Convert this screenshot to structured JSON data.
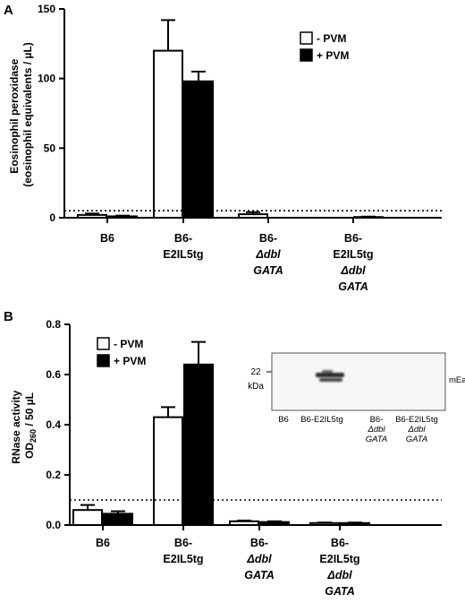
{
  "chart_data": [
    {
      "panel": "A",
      "type": "bar",
      "ylabel_lines": [
        "Eosinophil peroxidase",
        "(eosinophil equivalents / µL)"
      ],
      "ylim": [
        0,
        150
      ],
      "yticks": [
        0,
        50,
        100,
        150
      ],
      "threshold": 5,
      "legend_position": "top-right",
      "legend": [
        {
          "label": "- PVM",
          "color": "#ffffff"
        },
        {
          "label": "+ PVM",
          "color": "#000000"
        }
      ],
      "categories": [
        {
          "lines": [
            {
              "t": "B6",
              "i": false
            }
          ]
        },
        {
          "lines": [
            {
              "t": "B6-",
              "i": false
            },
            {
              "t": "E2IL5tg",
              "i": false
            }
          ]
        },
        {
          "lines": [
            {
              "t": "B6-",
              "i": false
            },
            {
              "t": "Δdbl",
              "i": true
            },
            {
              "t": "GATA",
              "i": true
            }
          ]
        },
        {
          "lines": [
            {
              "t": "B6-",
              "i": false
            },
            {
              "t": "E2IL5tg",
              "i": false
            },
            {
              "t": "Δdbl",
              "i": true
            },
            {
              "t": "GATA",
              "i": true
            }
          ]
        }
      ],
      "series": [
        {
          "name": "- PVM",
          "color": "#ffffff",
          "values": [
            2,
            120,
            2.5,
            0
          ],
          "errors": [
            1,
            22,
            1.5,
            0
          ]
        },
        {
          "name": "+ PVM",
          "color": "#000000",
          "values": [
            1,
            98,
            0,
            0.5
          ],
          "errors": [
            0.5,
            7,
            0,
            0.3
          ]
        }
      ]
    },
    {
      "panel": "B",
      "type": "bar",
      "ylabel_lines": [
        "RNase activity",
        "OD260 / 50 µL"
      ],
      "ylim": [
        0,
        0.8
      ],
      "yticks": [
        "0.0",
        "0.2",
        "0.4",
        "0.6",
        "0.8"
      ],
      "threshold": 0.1,
      "legend_position": "top-left",
      "legend": [
        {
          "label": "- PVM",
          "color": "#ffffff"
        },
        {
          "label": "+ PVM",
          "color": "#000000"
        }
      ],
      "categories": [
        {
          "lines": [
            {
              "t": "B6",
              "i": false
            }
          ]
        },
        {
          "lines": [
            {
              "t": "B6-",
              "i": false
            },
            {
              "t": "E2IL5tg",
              "i": false
            }
          ]
        },
        {
          "lines": [
            {
              "t": "B6-",
              "i": false
            },
            {
              "t": "Δdbl",
              "i": true
            },
            {
              "t": "GATA",
              "i": true
            }
          ]
        },
        {
          "lines": [
            {
              "t": "B6-",
              "i": false
            },
            {
              "t": "E2IL5tg",
              "i": false
            },
            {
              "t": "Δdbl",
              "i": true
            },
            {
              "t": "GATA",
              "i": true
            }
          ]
        }
      ],
      "series": [
        {
          "name": "- PVM",
          "color": "#ffffff",
          "values": [
            0.06,
            0.43,
            0.015,
            0.008
          ],
          "errors": [
            0.02,
            0.04,
            0.003,
            0.002
          ]
        },
        {
          "name": "+ PVM",
          "color": "#000000",
          "values": [
            0.045,
            0.64,
            0.012,
            0.008
          ],
          "errors": [
            0.01,
            0.09,
            0.003,
            0.002
          ]
        }
      ],
      "inset": {
        "marker": "22",
        "unit": "kDa",
        "band_label": "mEars",
        "lanes": [
          {
            "lines": [
              {
                "t": "B6",
                "i": false
              }
            ]
          },
          {
            "lines": [
              {
                "t": "B6-E2IL5tg",
                "i": false
              }
            ]
          },
          {
            "lines": [
              {
                "t": "B6-",
                "i": false
              },
              {
                "t": "Δdbl",
                "i": true
              },
              {
                "t": "GATA",
                "i": true
              }
            ]
          },
          {
            "lines": [
              {
                "t": "B6-E2IL5tg",
                "i": false
              },
              {
                "t": "Δdbl",
                "i": true
              },
              {
                "t": "GATA",
                "i": true
              }
            ]
          }
        ]
      }
    }
  ]
}
